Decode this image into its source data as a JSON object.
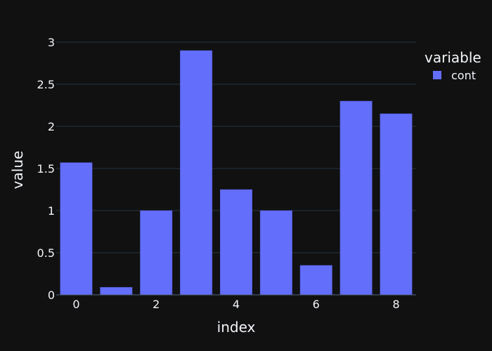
{
  "chart_data": {
    "type": "bar",
    "x": [
      0,
      1,
      2,
      3,
      4,
      5,
      6,
      7,
      8
    ],
    "series": [
      {
        "name": "cont",
        "values": [
          1.57,
          0.09,
          1.0,
          2.9,
          1.25,
          1.0,
          0.35,
          2.3,
          2.15
        ]
      }
    ],
    "xlabel": "index",
    "ylabel": "value",
    "ylim": [
      0,
      3.1
    ],
    "xlim": [
      -0.5,
      8.5
    ],
    "y_ticks": [
      0,
      0.5,
      1,
      1.5,
      2,
      2.5,
      3
    ],
    "y_tick_labels": [
      "0",
      "0.5",
      "1",
      "1.5",
      "2",
      "2.5",
      "3"
    ],
    "x_ticks": [
      0,
      2,
      4,
      6,
      8
    ],
    "x_tick_labels": [
      "0",
      "2",
      "4",
      "6",
      "8"
    ],
    "legend": {
      "title": "variable",
      "placement": "top-right"
    },
    "grid": true
  },
  "colors": {
    "background": "#111111",
    "bar": "#636efa",
    "grid": "#283442",
    "text": "#f2f5fa"
  }
}
